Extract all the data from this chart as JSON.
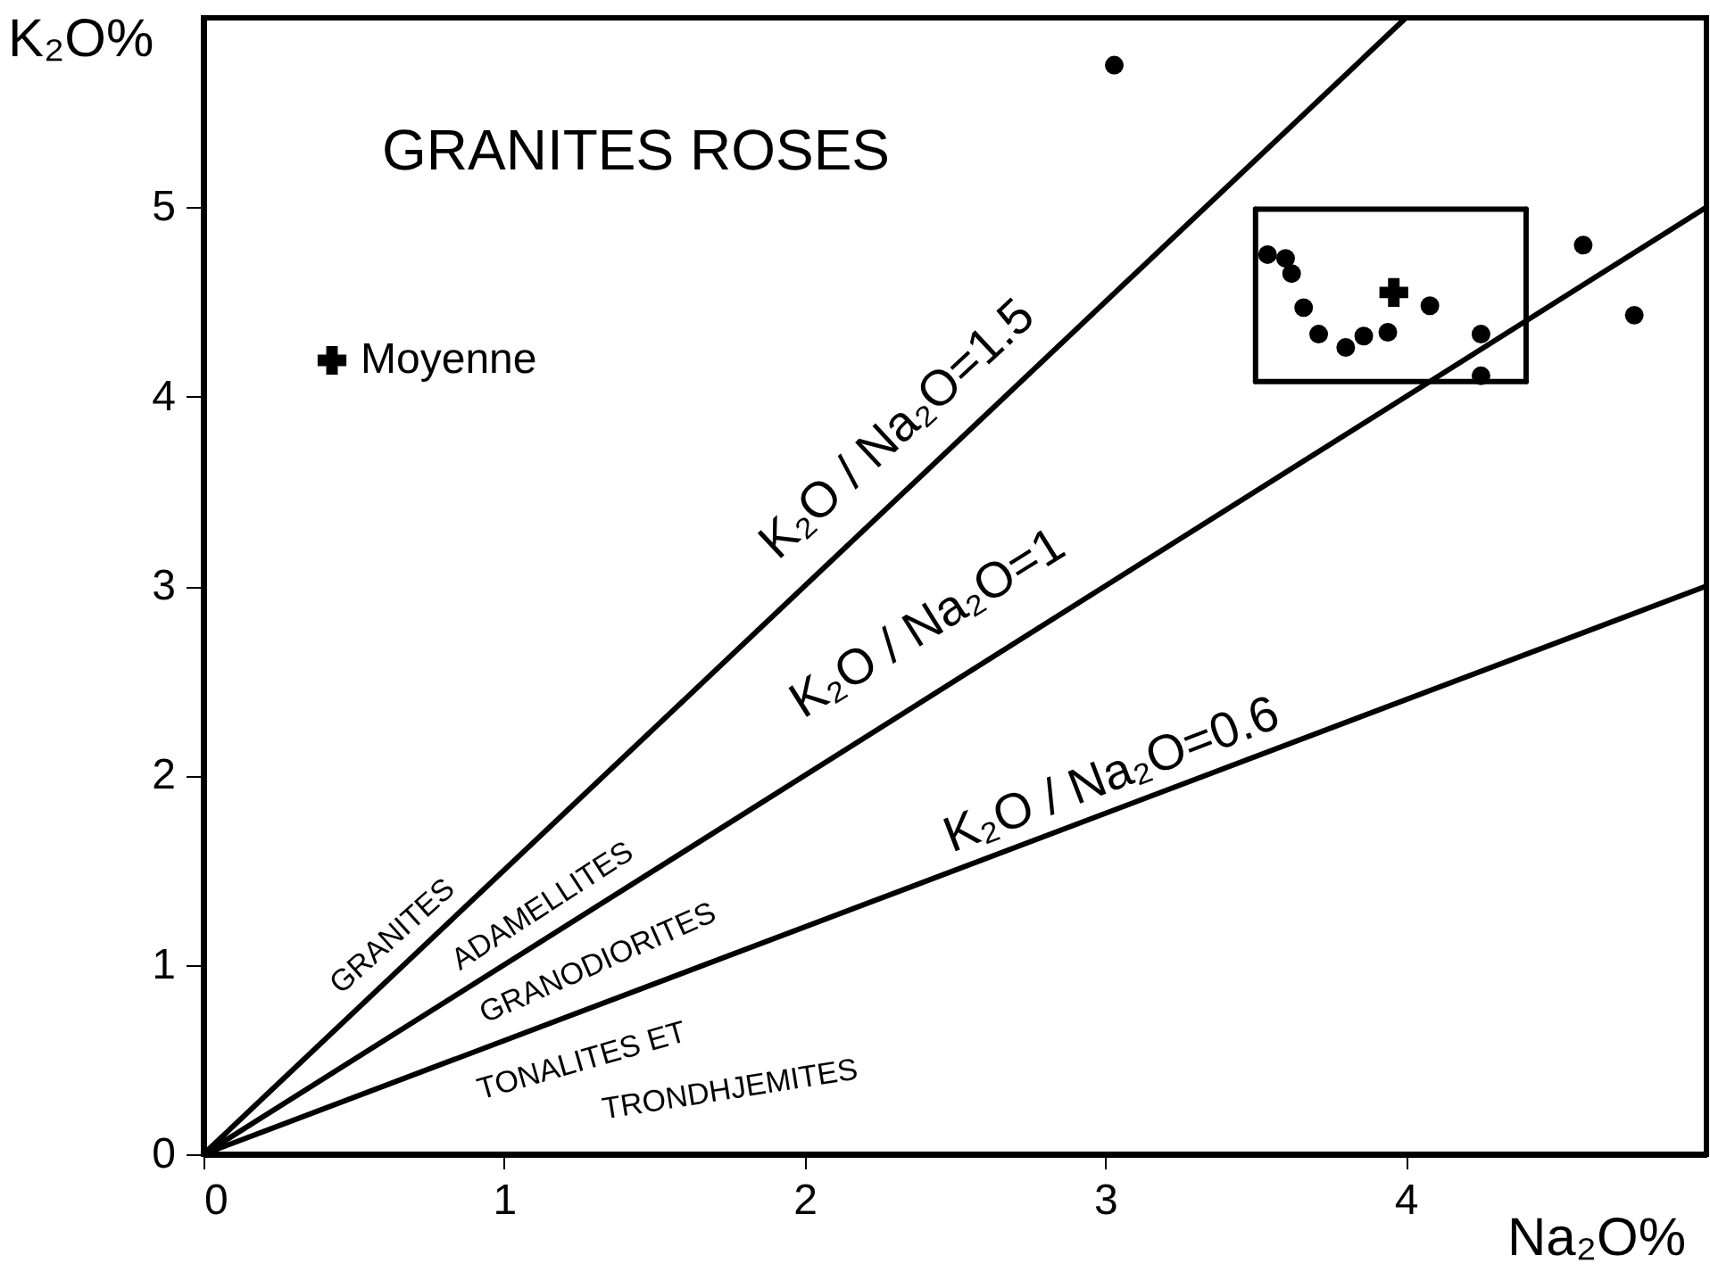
{
  "chart_data": {
    "type": "scatter",
    "title": "GRANITES ROSES",
    "xlabel": "Na₂O%",
    "ylabel": "K₂O%",
    "xlim": [
      0,
      5
    ],
    "ylim": [
      0,
      6
    ],
    "xticks": [
      0,
      1,
      2,
      3,
      4
    ],
    "yticks": [
      0,
      1,
      2,
      3,
      4,
      5
    ],
    "grid": false,
    "legend": "top left",
    "series": [
      {
        "type": "line",
        "color": "#000000",
        "line_style": "solid",
        "marker": "none",
        "x": [
          0,
          4
        ],
        "values": [
          0,
          6
        ]
      },
      {
        "type": "line",
        "color": "#000000",
        "line_style": "solid",
        "marker": "none",
        "x": [
          0,
          5
        ],
        "values": [
          0,
          5
        ]
      },
      {
        "type": "line",
        "color": "#000000",
        "line_style": "solid",
        "marker": "none",
        "x": [
          0,
          5
        ],
        "values": [
          0,
          3
        ]
      },
      {
        "type": "line",
        "color": "#000000",
        "line_style": "solid",
        "marker": "none",
        "x": [
          3.5,
          4.4
        ],
        "values": [
          4.99,
          4.99
        ]
      },
      {
        "type": "line",
        "color": "#000000",
        "line_style": "solid",
        "marker": "none",
        "x": [
          3.5,
          4.4
        ],
        "values": [
          4.08,
          4.08
        ]
      },
      {
        "type": "line",
        "color": "#000000",
        "line_style": "solid",
        "marker": "none",
        "x": [
          3.5,
          3.5
        ],
        "values": [
          4.08,
          4.99
        ]
      },
      {
        "type": "line",
        "color": "#000000",
        "line_style": "solid",
        "marker": "none",
        "x": [
          4.4,
          4.4
        ],
        "values": [
          4.08,
          4.99
        ]
      },
      {
        "color": "#000000",
        "marker": "circle",
        "x": [
          3.03,
          3.54,
          3.6,
          3.62,
          3.66,
          3.71,
          3.8,
          3.86,
          3.94,
          4.08,
          4.25,
          4.25,
          4.59,
          4.76
        ],
        "values": [
          5.75,
          4.75,
          4.73,
          4.65,
          4.47,
          4.33,
          4.26,
          4.32,
          4.34,
          4.48,
          4.33,
          4.11,
          4.8,
          4.43
        ]
      },
      {
        "name": "Moyenne",
        "color": "#000000",
        "marker": "cross",
        "x": [
          3.96
        ],
        "values": [
          4.55
        ]
      }
    ],
    "annotations": [
      "K₂O / Na₂O=1.5",
      "K₂O / Na₂O=1",
      "K₂O / Na₂O=0.6",
      "GRANITES",
      "ADAMELLITES",
      "GRANODIORITES",
      "TONALITES  ET",
      "TRONDHJEMITES"
    ]
  }
}
